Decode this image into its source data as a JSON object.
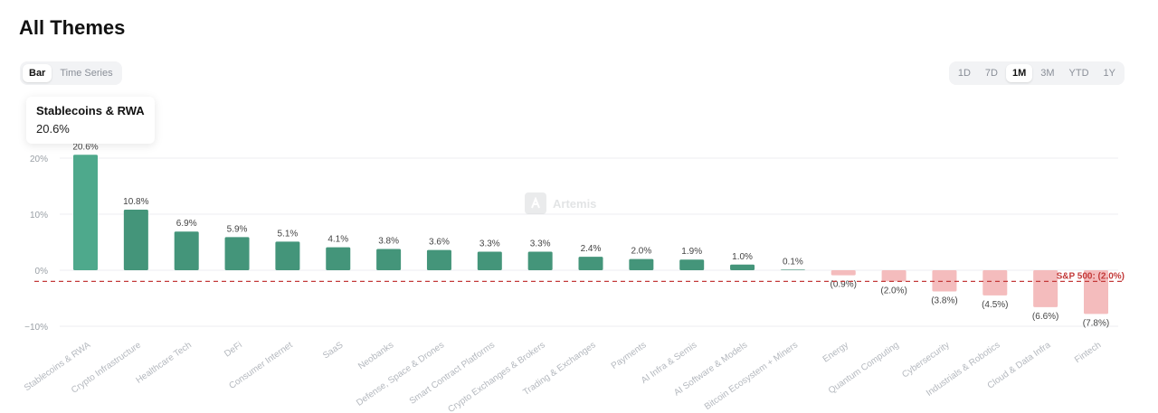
{
  "page": {
    "title": "All Themes"
  },
  "view_toggle": {
    "options": [
      "Bar",
      "Time Series"
    ],
    "selected": "Bar"
  },
  "range_toggle": {
    "options": [
      "1D",
      "7D",
      "1M",
      "3M",
      "YTD",
      "1Y"
    ],
    "selected": "1M"
  },
  "tooltip": {
    "title": "Stablecoins & RWA",
    "value": "20.6%"
  },
  "watermark": {
    "text": "Artemis"
  },
  "colors": {
    "positive_bar": "#44957a",
    "positive_bar_highlight": "#4ea98c",
    "negative_bar": "#f4bcbd",
    "benchmark_line": "#c33a3a",
    "grid": "#eceef1",
    "tick_text": "#9aa0a6",
    "value_text": "#444444"
  },
  "chart_data": {
    "type": "bar",
    "categories": [
      "Stablecoins & RWA",
      "Crypto Infrastructure",
      "Healthcare Tech",
      "DeFi",
      "Consumer Internet",
      "SaaS",
      "Neobanks",
      "Defense, Space & Drones",
      "Smart Contract Platforms",
      "Crypto Exchanges & Brokers",
      "Trading & Exchanges",
      "Payments",
      "AI Infra & Semis",
      "AI Software & Models",
      "Bitcoin Ecosystem + Miners",
      "Energy",
      "Quantum Computing",
      "Cybersecurity",
      "Industrials & Robotics",
      "Cloud & Data Infra",
      "Fintech"
    ],
    "values": [
      20.6,
      10.8,
      6.9,
      5.9,
      5.1,
      4.1,
      3.8,
      3.6,
      3.3,
      3.3,
      2.4,
      2.0,
      1.9,
      1.0,
      0.1,
      -0.9,
      -2.0,
      -3.8,
      -4.5,
      -6.6,
      -7.8
    ],
    "data_labels": [
      "20.6%",
      "10.8%",
      "6.9%",
      "5.9%",
      "5.1%",
      "4.1%",
      "3.8%",
      "3.6%",
      "3.3%",
      "3.3%",
      "2.4%",
      "2.0%",
      "1.9%",
      "1.0%",
      "0.1%",
      "(0.9%)",
      "(2.0%)",
      "(3.8%)",
      "(4.5%)",
      "(6.6%)",
      "(7.8%)"
    ],
    "y_ticks": [
      {
        "value": 20,
        "label": "20%"
      },
      {
        "value": 10,
        "label": "10%"
      },
      {
        "value": 0,
        "label": "0%"
      },
      {
        "value": -10,
        "label": "−10%"
      }
    ],
    "ylim": [
      -10,
      20
    ],
    "grid": true,
    "highlight_index": 0,
    "benchmark": {
      "label": "S&P 500: (2.0%)",
      "value": -2.0
    }
  }
}
